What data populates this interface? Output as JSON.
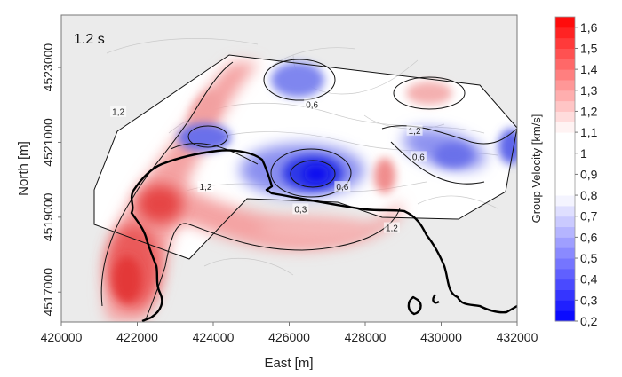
{
  "chart_data": {
    "type": "heatmap",
    "annotation": "1.2 s",
    "xlabel": "East [m]",
    "ylabel": "North [m]",
    "colorbar_label": "Group Velocity [km/s]",
    "xlim": [
      420000,
      432000
    ],
    "ylim": [
      4516200,
      4524400
    ],
    "xticks": [
      420000,
      422000,
      424000,
      426000,
      428000,
      430000,
      432000
    ],
    "yticks": [
      4517000,
      4519000,
      4521000,
      4523000
    ],
    "colorbar_ticks": [
      "0,2",
      "0,3",
      "0,4",
      "0,5",
      "0,6",
      "0,7",
      "0,8",
      "0,9",
      "1",
      "1,1",
      "1,2",
      "1,3",
      "1,4",
      "1,5",
      "1,6"
    ],
    "colorbar_range": [
      0.2,
      1.65
    ],
    "neutral_band": [
      0.8,
      1.1
    ],
    "colormap": {
      "low": "#0000ff",
      "mid": "#ffffff",
      "high": "#ff0000",
      "nodata": "#ebebeb"
    },
    "contour_labels": [
      {
        "text": "1,2",
        "x": 421500,
        "y": 4521800
      },
      {
        "text": "1,2",
        "x": 423800,
        "y": 4519800
      },
      {
        "text": "0,6",
        "x": 426600,
        "y": 4522000
      },
      {
        "text": "1,2",
        "x": 429300,
        "y": 4521300
      },
      {
        "text": "0,6",
        "x": 429400,
        "y": 4520600
      },
      {
        "text": "0,6",
        "x": 427400,
        "y": 4519800
      },
      {
        "text": "0,3",
        "x": 426300,
        "y": 4519200
      },
      {
        "text": "1,2",
        "x": 428700,
        "y": 4518700
      }
    ],
    "anomalies": [
      {
        "type": "low",
        "x": 426800,
        "y": 4519800,
        "min_value": 0.25
      },
      {
        "type": "low",
        "x": 424800,
        "y": 4520700,
        "min_value": 0.35
      },
      {
        "type": "low",
        "x": 426500,
        "y": 4522300,
        "min_value": 0.4
      },
      {
        "type": "low",
        "x": 430300,
        "y": 4520200,
        "min_value": 0.45
      },
      {
        "type": "low",
        "x": 431700,
        "y": 4520300,
        "min_value": 0.4
      },
      {
        "type": "high",
        "x": 422000,
        "y": 4517500,
        "max_value": 1.6
      },
      {
        "type": "high",
        "x": 422900,
        "y": 4519700,
        "max_value": 1.5
      },
      {
        "type": "high",
        "x": 430100,
        "y": 4521900,
        "max_value": 1.3
      },
      {
        "type": "high",
        "x": 429000,
        "y": 4519200,
        "max_value": 1.3
      }
    ],
    "grid": false,
    "legend": "colorbar-right"
  }
}
